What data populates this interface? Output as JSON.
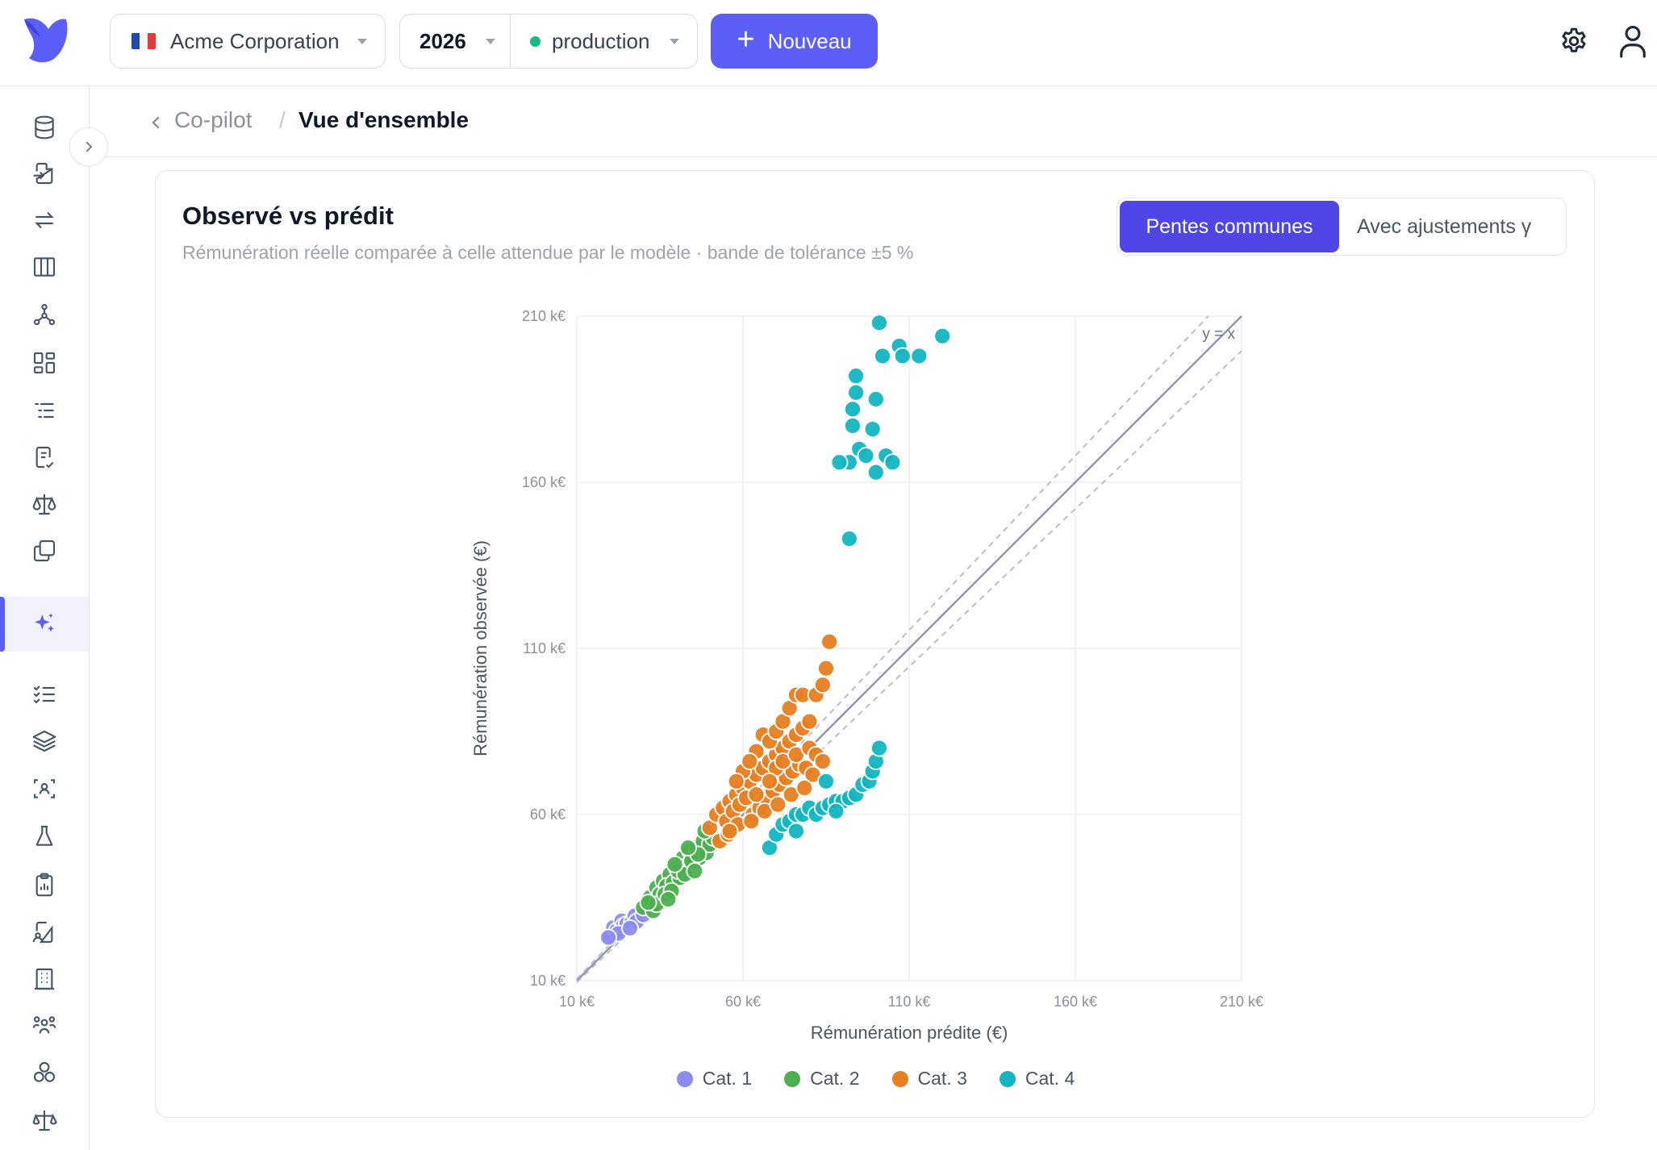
{
  "topbar": {
    "org_name": "Acme Corporation",
    "year": "2026",
    "environment": "production",
    "new_button_label": "Nouveau",
    "colors": {
      "accent": "#5b5ef7",
      "env_status": "#16b981"
    },
    "icons": [
      "logo-icon",
      "flag-fr-icon",
      "gear-icon",
      "user-icon"
    ]
  },
  "sidebar": {
    "items": [
      {
        "icon": "database-icon"
      },
      {
        "icon": "file-import-icon"
      },
      {
        "icon": "arrows-exchange-icon"
      },
      {
        "icon": "columns-icon"
      },
      {
        "icon": "graph-nodes-icon"
      },
      {
        "icon": "dashboard-grid-icon"
      },
      {
        "icon": "list-indent-icon"
      },
      {
        "icon": "file-check-icon"
      },
      {
        "icon": "scale-icon"
      },
      {
        "icon": "copy-icon"
      },
      {
        "icon": "sparkles-icon",
        "active": true
      },
      {
        "icon": "checklist-icon"
      },
      {
        "icon": "layers-icon"
      },
      {
        "icon": "scan-user-icon"
      },
      {
        "icon": "flask-icon"
      },
      {
        "icon": "clipboard-chart-icon"
      },
      {
        "icon": "file-user-icon"
      },
      {
        "icon": "building-icon"
      },
      {
        "icon": "users-group-icon"
      },
      {
        "icon": "circles-icon"
      },
      {
        "icon": "balance-icon"
      }
    ]
  },
  "breadcrumb": {
    "parent": "Co-pilot",
    "separator": "/",
    "current": "Vue d'ensemble"
  },
  "card": {
    "title": "Observé vs prédit",
    "subtitle": "Rémunération réelle comparée à celle attendue par le modèle · bande de tolérance ±5 %",
    "toggle": {
      "active": "Pentes communes",
      "inactive": "Avec ajustements γ"
    }
  },
  "chart_data": {
    "type": "scatter",
    "title": "",
    "xlabel": "Rémunération prédite (€)",
    "ylabel": "Rémunération observée (€)",
    "xlim": [
      10000,
      210000
    ],
    "ylim": [
      10000,
      210000
    ],
    "xticks": [
      "10 k€",
      "60 k€",
      "110 k€",
      "160 k€",
      "210 k€"
    ],
    "yticks": [
      "10 k€",
      "60 k€",
      "110 k€",
      "160 k€",
      "210 k€"
    ],
    "grid": true,
    "legend_position": "bottom",
    "reference_line": {
      "label": "y = x",
      "tolerance": 0.05
    },
    "series": [
      {
        "name": "Cat. 1",
        "color": "#8b8cf0",
        "points": [
          [
            20000,
            23500
          ],
          [
            21000,
            26000
          ],
          [
            22000,
            25000
          ],
          [
            23500,
            28000
          ],
          [
            24000,
            26500
          ],
          [
            25000,
            27000
          ],
          [
            26500,
            27500
          ],
          [
            27500,
            29500
          ],
          [
            28000,
            27800
          ],
          [
            30000,
            29800
          ],
          [
            22500,
            24200
          ],
          [
            19500,
            23000
          ],
          [
            26000,
            25800
          ]
        ]
      },
      {
        "name": "Cat. 2",
        "color": "#4caf50",
        "points": [
          [
            30000,
            32000
          ],
          [
            32000,
            35000
          ],
          [
            34000,
            38000
          ],
          [
            36000,
            40000
          ],
          [
            38000,
            42000
          ],
          [
            40000,
            44000
          ],
          [
            42000,
            47000
          ],
          [
            44000,
            49000
          ],
          [
            46000,
            50000
          ],
          [
            48000,
            52000
          ],
          [
            33000,
            31000
          ],
          [
            35000,
            36000
          ],
          [
            37000,
            38500
          ],
          [
            39000,
            39500
          ],
          [
            41000,
            41000
          ],
          [
            43000,
            44500
          ],
          [
            45000,
            45500
          ],
          [
            47000,
            47000
          ],
          [
            49000,
            48500
          ],
          [
            50000,
            51000
          ],
          [
            34000,
            33000
          ],
          [
            36500,
            36000
          ],
          [
            38500,
            37000
          ],
          [
            40500,
            43000
          ],
          [
            42500,
            42000
          ],
          [
            44500,
            46000
          ],
          [
            46500,
            48000
          ],
          [
            51000,
            53000
          ],
          [
            31500,
            33500
          ],
          [
            39500,
            45000
          ],
          [
            43500,
            50000
          ],
          [
            48500,
            55000
          ],
          [
            37500,
            34500
          ],
          [
            45500,
            43000
          ]
        ]
      },
      {
        "name": "Cat. 3",
        "color": "#e67e22",
        "points": [
          [
            50000,
            56000
          ],
          [
            52000,
            60000
          ],
          [
            54000,
            62000
          ],
          [
            56000,
            64000
          ],
          [
            58000,
            66000
          ],
          [
            60000,
            68000
          ],
          [
            62000,
            70000
          ],
          [
            64000,
            72000
          ],
          [
            66000,
            74000
          ],
          [
            68000,
            76000
          ],
          [
            70000,
            78000
          ],
          [
            72000,
            80000
          ],
          [
            74000,
            82000
          ],
          [
            76000,
            84000
          ],
          [
            78000,
            86000
          ],
          [
            80000,
            88000
          ],
          [
            55000,
            58000
          ],
          [
            57000,
            61000
          ],
          [
            59000,
            63000
          ],
          [
            61000,
            65000
          ],
          [
            63000,
            60000
          ],
          [
            65000,
            62000
          ],
          [
            67000,
            65000
          ],
          [
            69000,
            67000
          ],
          [
            71000,
            69000
          ],
          [
            73000,
            71000
          ],
          [
            75000,
            73000
          ],
          [
            77000,
            75000
          ],
          [
            79000,
            74000
          ],
          [
            81000,
            72000
          ],
          [
            53000,
            52000
          ],
          [
            55500,
            54000
          ],
          [
            58500,
            57000
          ],
          [
            62500,
            58000
          ],
          [
            66500,
            61000
          ],
          [
            70500,
            63000
          ],
          [
            74500,
            66000
          ],
          [
            78500,
            68000
          ],
          [
            64000,
            79000
          ],
          [
            66000,
            84000
          ],
          [
            68000,
            82000
          ],
          [
            70000,
            85000
          ],
          [
            72000,
            88000
          ],
          [
            74000,
            92000
          ],
          [
            76000,
            96000
          ],
          [
            78000,
            96000
          ],
          [
            82000,
            96000
          ],
          [
            84000,
            99000
          ],
          [
            85000,
            104000
          ],
          [
            86000,
            112000
          ],
          [
            60000,
            73000
          ],
          [
            62000,
            76000
          ],
          [
            58000,
            70000
          ],
          [
            70000,
            74000
          ],
          [
            72000,
            76000
          ],
          [
            76000,
            78000
          ],
          [
            80000,
            80000
          ],
          [
            82000,
            78000
          ],
          [
            84000,
            76000
          ],
          [
            68000,
            70000
          ],
          [
            64000,
            66000
          ],
          [
            56000,
            55000
          ]
        ]
      },
      {
        "name": "Cat. 4",
        "color": "#12b5c1",
        "points": [
          [
            68000,
            50000
          ],
          [
            70000,
            54000
          ],
          [
            72000,
            57000
          ],
          [
            74000,
            58000
          ],
          [
            76000,
            60000
          ],
          [
            78000,
            60000
          ],
          [
            80000,
            62000
          ],
          [
            82000,
            60000
          ],
          [
            84000,
            62000
          ],
          [
            86000,
            63000
          ],
          [
            88000,
            64000
          ],
          [
            90000,
            64000
          ],
          [
            92000,
            65000
          ],
          [
            94000,
            66000
          ],
          [
            96000,
            69000
          ],
          [
            98000,
            70000
          ],
          [
            99000,
            73000
          ],
          [
            100000,
            76000
          ],
          [
            101000,
            80000
          ],
          [
            85000,
            70000
          ],
          [
            88000,
            61000
          ],
          [
            76000,
            55000
          ],
          [
            94000,
            192000
          ],
          [
            101000,
            208000
          ],
          [
            102000,
            198000
          ],
          [
            107000,
            201000
          ],
          [
            108000,
            198000
          ],
          [
            113000,
            198000
          ],
          [
            120000,
            204000
          ],
          [
            93000,
            182000
          ],
          [
            93000,
            177000
          ],
          [
            94000,
            187000
          ],
          [
            99000,
            176000
          ],
          [
            100000,
            185000
          ],
          [
            95000,
            170000
          ],
          [
            97000,
            168000
          ],
          [
            100000,
            163000
          ],
          [
            103000,
            168000
          ],
          [
            105000,
            166000
          ],
          [
            92000,
            166000
          ],
          [
            89000,
            166000
          ],
          [
            92000,
            143000
          ]
        ]
      }
    ]
  }
}
